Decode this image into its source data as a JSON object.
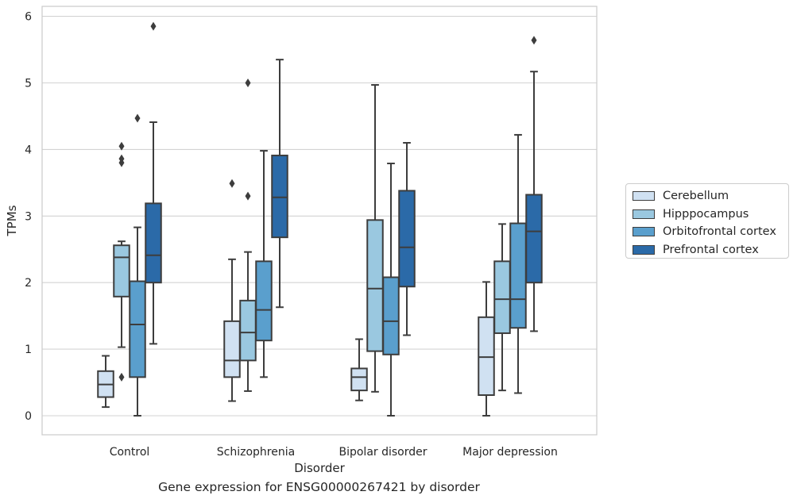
{
  "chart_data": {
    "type": "boxplot",
    "ylabel": "TPMs",
    "xlabel": "Disorder",
    "ylim": [
      -0.3,
      6.15
    ],
    "y_ticks": [
      0,
      1,
      2,
      3,
      4,
      5,
      6
    ],
    "grid": "horizontal",
    "legend_position": "right",
    "categories": [
      "Control",
      "Schizophrenia",
      "Bipolar disorder",
      "Major depression"
    ],
    "series": [
      {
        "name": "Cerebellum",
        "color": "#d0e1f2",
        "boxes": [
          {
            "q1": 0.28,
            "median": 0.47,
            "q3": 0.67,
            "whisker_low": 0.13,
            "whisker_high": 0.9,
            "outliers": []
          },
          {
            "q1": 0.58,
            "median": 0.83,
            "q3": 1.42,
            "whisker_low": 0.22,
            "whisker_high": 2.35,
            "outliers": [
              3.49
            ]
          },
          {
            "q1": 0.38,
            "median": 0.58,
            "q3": 0.71,
            "whisker_low": 0.23,
            "whisker_high": 1.15,
            "outliers": []
          },
          {
            "q1": 0.31,
            "median": 0.88,
            "q3": 1.48,
            "whisker_low": 0.0,
            "whisker_high": 2.01,
            "outliers": []
          }
        ]
      },
      {
        "name": "Hipppocampus",
        "color": "#9ac8e0",
        "boxes": [
          {
            "q1": 1.79,
            "median": 2.38,
            "q3": 2.56,
            "whisker_low": 1.03,
            "whisker_high": 2.62,
            "outliers": [
              0.58,
              3.8,
              3.86,
              4.05
            ]
          },
          {
            "q1": 0.83,
            "median": 1.25,
            "q3": 1.73,
            "whisker_low": 0.37,
            "whisker_high": 2.46,
            "outliers": [
              3.3,
              5.0
            ]
          },
          {
            "q1": 0.97,
            "median": 1.91,
            "q3": 2.94,
            "whisker_low": 0.36,
            "whisker_high": 4.97,
            "outliers": []
          },
          {
            "q1": 1.24,
            "median": 1.75,
            "q3": 2.32,
            "whisker_low": 0.38,
            "whisker_high": 2.88,
            "outliers": []
          }
        ]
      },
      {
        "name": "Orbitofrontal cortex",
        "color": "#5a9fcd",
        "boxes": [
          {
            "q1": 0.58,
            "median": 1.37,
            "q3": 2.02,
            "whisker_low": 0.0,
            "whisker_high": 2.83,
            "outliers": [
              4.47
            ]
          },
          {
            "q1": 1.13,
            "median": 1.59,
            "q3": 2.32,
            "whisker_low": 0.58,
            "whisker_high": 3.98,
            "outliers": []
          },
          {
            "q1": 0.92,
            "median": 1.42,
            "q3": 2.08,
            "whisker_low": 0.0,
            "whisker_high": 3.79,
            "outliers": []
          },
          {
            "q1": 1.32,
            "median": 1.75,
            "q3": 2.89,
            "whisker_low": 0.34,
            "whisker_high": 4.22,
            "outliers": []
          }
        ]
      },
      {
        "name": "Prefrontal cortex",
        "color": "#2b6aa8",
        "boxes": [
          {
            "q1": 2.0,
            "median": 2.41,
            "q3": 3.19,
            "whisker_low": 1.08,
            "whisker_high": 4.41,
            "outliers": [
              5.85
            ]
          },
          {
            "q1": 2.68,
            "median": 3.28,
            "q3": 3.91,
            "whisker_low": 1.63,
            "whisker_high": 5.35,
            "outliers": []
          },
          {
            "q1": 1.94,
            "median": 2.53,
            "q3": 3.38,
            "whisker_low": 1.21,
            "whisker_high": 4.1,
            "outliers": []
          },
          {
            "q1": 2.0,
            "median": 2.77,
            "q3": 3.32,
            "whisker_low": 1.27,
            "whisker_high": 5.17,
            "outliers": [
              5.64
            ]
          }
        ]
      }
    ]
  },
  "caption": "Gene expression for ENSG00000267421 by disorder"
}
